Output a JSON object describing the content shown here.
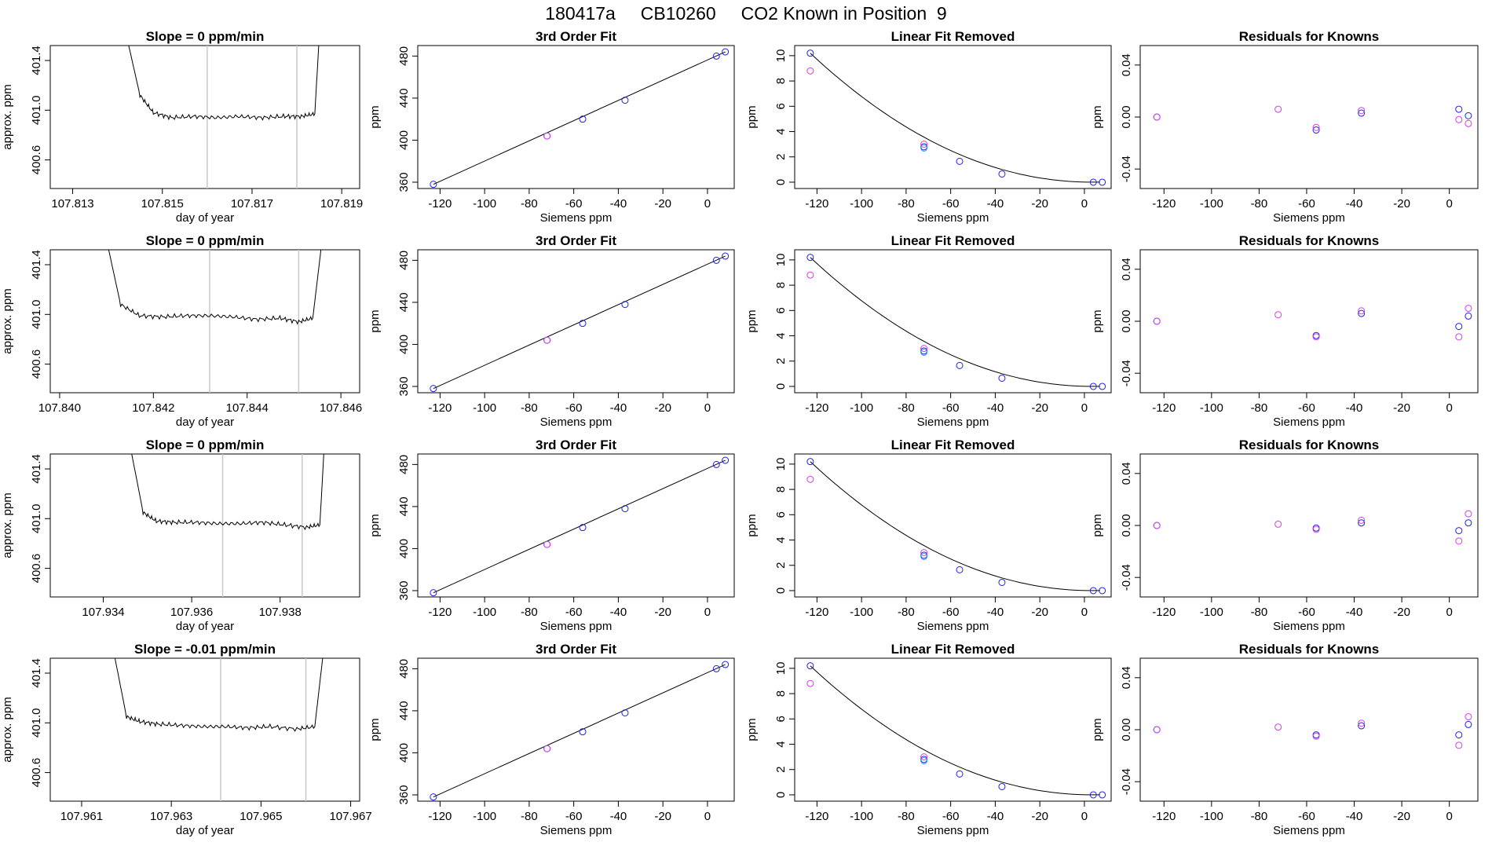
{
  "page": {
    "title": "180417a     CB10260     CO2 Known in Position  9"
  },
  "chart_data": [
    {
      "type": "line",
      "title": "Slope =  0  ppm/min",
      "xlabel": "day of year",
      "ylabel": "approx. ppm",
      "xlim": [
        107.8125,
        107.8194
      ],
      "ylim": [
        400.37,
        401.52
      ],
      "xticks": [
        "107.813",
        "107.815",
        "107.817",
        "107.819"
      ],
      "yticks": [
        "400.6",
        "401.0",
        "401.4"
      ],
      "vlines": [
        107.816,
        107.818
      ],
      "series": [
        {
          "x": [
            107.8142,
            107.8145,
            107.8148,
            107.8152,
            107.8157,
            107.8162,
            107.8167,
            107.8172,
            107.8177,
            107.8181,
            107.8184,
            107.8185
          ],
          "y": [
            401.6,
            401.12,
            400.98,
            400.94,
            400.95,
            400.94,
            400.95,
            400.94,
            400.95,
            400.95,
            400.97,
            401.6
          ]
        }
      ]
    },
    {
      "type": "line",
      "title": "3rd Order Fit",
      "xlabel": "Siemens ppm",
      "ylabel": "ppm",
      "xlim": [
        -130,
        12
      ],
      "ylim": [
        354,
        490
      ],
      "xticks": [
        "-120",
        "-100",
        "-80",
        "-60",
        "-40",
        "-20",
        "0"
      ],
      "yticks": [
        "360",
        "400",
        "440",
        "480"
      ],
      "series": [
        {
          "x": [
            -123,
            -72,
            -56,
            -37,
            4,
            8
          ],
          "y": [
            358,
            404,
            420,
            438,
            480,
            484
          ]
        }
      ]
    },
    {
      "type": "line",
      "title": "Linear Fit Removed",
      "xlabel": "Siemens ppm",
      "ylabel": "ppm",
      "xlim": [
        -130,
        12
      ],
      "ylim": [
        -0.5,
        10.8
      ],
      "xticks": [
        "-120",
        "-100",
        "-80",
        "-60",
        "-40",
        "-20",
        "0"
      ],
      "yticks": [
        "0",
        "2",
        "4",
        "6",
        "8",
        "10"
      ],
      "series": [
        {
          "x": [
            -123,
            -72,
            -56,
            -37,
            4,
            8
          ],
          "y": [
            10.2,
            2.8,
            1.65,
            0.65,
            0,
            0
          ]
        }
      ]
    },
    {
      "type": "scatter",
      "title": "Residuals for Knowns",
      "xlabel": "Siemens ppm",
      "ylabel": "ppm",
      "xlim": [
        -130,
        12
      ],
      "ylim": [
        -0.055,
        0.055
      ],
      "xticks": [
        "-120",
        "-100",
        "-80",
        "-60",
        "-40",
        "-20",
        "0"
      ],
      "yticks": [
        "-0.04",
        "0.00",
        "0.04"
      ],
      "series": [
        {
          "x": [
            -123,
            -72,
            -56,
            -56,
            -37,
            -37,
            4,
            4,
            8,
            8
          ],
          "y": [
            0.0,
            0.006,
            -0.01,
            -0.008,
            0.003,
            0.005,
            0.006,
            -0.002,
            0.001,
            -0.005
          ]
        }
      ]
    },
    {
      "type": "line",
      "title": "Slope =  0  ppm/min",
      "xlabel": "day of year",
      "ylabel": "approx. ppm",
      "xlim": [
        107.8398,
        107.8464
      ],
      "ylim": [
        400.37,
        401.52
      ],
      "xticks": [
        "107.840",
        "107.842",
        "107.844",
        "107.846"
      ],
      "yticks": [
        "400.6",
        "401.0",
        "401.4"
      ],
      "vlines": [
        107.8432,
        107.8451
      ],
      "series": [
        {
          "x": [
            107.841,
            107.8413,
            107.8417,
            107.8422,
            107.8427,
            107.8432,
            107.8437,
            107.8442,
            107.8447,
            107.8451,
            107.8454,
            107.8456
          ],
          "y": [
            401.6,
            401.08,
            400.99,
            400.98,
            400.99,
            400.99,
            400.98,
            400.96,
            400.97,
            400.94,
            400.97,
            401.6
          ]
        }
      ]
    },
    {
      "type": "line",
      "title": "3rd Order Fit",
      "xlabel": "Siemens ppm",
      "ylabel": "ppm",
      "xlim": [
        -130,
        12
      ],
      "ylim": [
        354,
        490
      ],
      "xticks": [
        "-120",
        "-100",
        "-80",
        "-60",
        "-40",
        "-20",
        "0"
      ],
      "yticks": [
        "360",
        "400",
        "440",
        "480"
      ],
      "series": [
        {
          "x": [
            -123,
            -72,
            -56,
            -37,
            4,
            8
          ],
          "y": [
            358,
            404,
            420,
            438,
            480,
            484
          ]
        }
      ]
    },
    {
      "type": "line",
      "title": "Linear Fit Removed",
      "xlabel": "Siemens ppm",
      "ylabel": "ppm",
      "xlim": [
        -130,
        12
      ],
      "ylim": [
        -0.5,
        10.8
      ],
      "xticks": [
        "-120",
        "-100",
        "-80",
        "-60",
        "-40",
        "-20",
        "0"
      ],
      "yticks": [
        "0",
        "2",
        "4",
        "6",
        "8",
        "10"
      ],
      "series": [
        {
          "x": [
            -123,
            -72,
            -56,
            -37,
            4,
            8
          ],
          "y": [
            10.2,
            2.8,
            1.65,
            0.65,
            0,
            0
          ]
        }
      ]
    },
    {
      "type": "scatter",
      "title": "Residuals for Knowns",
      "xlabel": "Siemens ppm",
      "ylabel": "ppm",
      "xlim": [
        -130,
        12
      ],
      "ylim": [
        -0.055,
        0.055
      ],
      "xticks": [
        "-120",
        "-100",
        "-80",
        "-60",
        "-40",
        "-20",
        "0"
      ],
      "yticks": [
        "-0.04",
        "0.00",
        "0.04"
      ],
      "series": [
        {
          "x": [
            -123,
            -72,
            -56,
            -56,
            -37,
            -37,
            4,
            4,
            8,
            8
          ],
          "y": [
            0.0,
            0.005,
            -0.011,
            -0.012,
            0.006,
            0.008,
            -0.004,
            -0.012,
            0.004,
            0.01
          ]
        }
      ]
    },
    {
      "type": "line",
      "title": "Slope =  0  ppm/min",
      "xlabel": "day of year",
      "ylabel": "approx. ppm",
      "xlim": [
        107.9328,
        107.9398
      ],
      "ylim": [
        400.37,
        401.52
      ],
      "xticks": [
        "107.934",
        "107.936",
        "107.938"
      ],
      "yticks": [
        "400.6",
        "401.0",
        "401.4"
      ],
      "vlines": [
        107.9367,
        107.9385
      ],
      "series": [
        {
          "x": [
            107.9346,
            107.9349,
            107.9352,
            107.9356,
            107.9361,
            107.9366,
            107.9371,
            107.9376,
            107.9381,
            107.9386,
            107.9389,
            107.939
          ],
          "y": [
            401.6,
            401.05,
            400.98,
            400.97,
            400.97,
            400.96,
            400.96,
            400.97,
            400.95,
            400.93,
            400.95,
            401.6
          ]
        }
      ]
    },
    {
      "type": "line",
      "title": "3rd Order Fit",
      "xlabel": "Siemens ppm",
      "ylabel": "ppm",
      "xlim": [
        -130,
        12
      ],
      "ylim": [
        354,
        490
      ],
      "xticks": [
        "-120",
        "-100",
        "-80",
        "-60",
        "-40",
        "-20",
        "0"
      ],
      "yticks": [
        "360",
        "400",
        "440",
        "480"
      ],
      "series": [
        {
          "x": [
            -123,
            -72,
            -56,
            -37,
            4,
            8
          ],
          "y": [
            358,
            404,
            420,
            438,
            480,
            484
          ]
        }
      ]
    },
    {
      "type": "line",
      "title": "Linear Fit Removed",
      "xlabel": "Siemens ppm",
      "ylabel": "ppm",
      "xlim": [
        -130,
        12
      ],
      "ylim": [
        -0.5,
        10.8
      ],
      "xticks": [
        "-120",
        "-100",
        "-80",
        "-60",
        "-40",
        "-20",
        "0"
      ],
      "yticks": [
        "0",
        "2",
        "4",
        "6",
        "8",
        "10"
      ],
      "series": [
        {
          "x": [
            -123,
            -72,
            -56,
            -37,
            4,
            8
          ],
          "y": [
            10.2,
            2.8,
            1.65,
            0.65,
            0,
            0
          ]
        }
      ]
    },
    {
      "type": "scatter",
      "title": "Residuals for Knowns",
      "xlabel": "Siemens ppm",
      "ylabel": "ppm",
      "xlim": [
        -130,
        12
      ],
      "ylim": [
        -0.055,
        0.055
      ],
      "xticks": [
        "-120",
        "-100",
        "-80",
        "-60",
        "-40",
        "-20",
        "0"
      ],
      "yticks": [
        "-0.04",
        "0.00",
        "0.04"
      ],
      "series": [
        {
          "x": [
            -123,
            -72,
            -56,
            -56,
            -37,
            -37,
            4,
            4,
            8,
            8
          ],
          "y": [
            0.0,
            0.001,
            -0.002,
            -0.003,
            0.002,
            0.004,
            -0.004,
            -0.012,
            0.002,
            0.009
          ]
        }
      ]
    },
    {
      "type": "line",
      "title": "Slope =  -0.01  ppm/min",
      "xlabel": "day of year",
      "ylabel": "approx. ppm",
      "xlim": [
        107.9603,
        107.9672
      ],
      "ylim": [
        400.37,
        401.52
      ],
      "xticks": [
        "107.961",
        "107.963",
        "107.965",
        "107.967"
      ],
      "yticks": [
        "400.6",
        "401.0",
        "401.4"
      ],
      "vlines": [
        107.9641,
        107.966
      ],
      "series": [
        {
          "x": [
            107.9617,
            107.962,
            107.9623,
            107.9627,
            107.9632,
            107.9637,
            107.9642,
            107.9647,
            107.9652,
            107.9658,
            107.9662,
            107.9664
          ],
          "y": [
            401.6,
            401.05,
            401.01,
            400.99,
            400.98,
            400.97,
            400.97,
            400.96,
            400.97,
            400.95,
            400.97,
            401.6
          ]
        }
      ]
    },
    {
      "type": "line",
      "title": "3rd Order Fit",
      "xlabel": "Siemens ppm",
      "ylabel": "ppm",
      "xlim": [
        -130,
        12
      ],
      "ylim": [
        354,
        490
      ],
      "xticks": [
        "-120",
        "-100",
        "-80",
        "-60",
        "-40",
        "-20",
        "0"
      ],
      "yticks": [
        "360",
        "400",
        "440",
        "480"
      ],
      "series": [
        {
          "x": [
            -123,
            -72,
            -56,
            -37,
            4,
            8
          ],
          "y": [
            358,
            404,
            420,
            438,
            480,
            484
          ]
        }
      ]
    },
    {
      "type": "line",
      "title": "Linear Fit Removed",
      "xlabel": "Siemens ppm",
      "ylabel": "ppm",
      "xlim": [
        -130,
        12
      ],
      "ylim": [
        -0.5,
        10.8
      ],
      "xticks": [
        "-120",
        "-100",
        "-80",
        "-60",
        "-40",
        "-20",
        "0"
      ],
      "yticks": [
        "0",
        "2",
        "4",
        "6",
        "8",
        "10"
      ],
      "series": [
        {
          "x": [
            -123,
            -72,
            -56,
            -37,
            4,
            8
          ],
          "y": [
            10.2,
            2.8,
            1.65,
            0.65,
            0,
            0
          ]
        }
      ]
    },
    {
      "type": "scatter",
      "title": "Residuals for Knowns",
      "xlabel": "Siemens ppm",
      "ylabel": "ppm",
      "xlim": [
        -130,
        12
      ],
      "ylim": [
        -0.055,
        0.055
      ],
      "xticks": [
        "-120",
        "-100",
        "-80",
        "-60",
        "-40",
        "-20",
        "0"
      ],
      "yticks": [
        "-0.04",
        "0.00",
        "0.04"
      ],
      "series": [
        {
          "x": [
            -123,
            -72,
            -56,
            -56,
            -37,
            -37,
            4,
            4,
            8,
            8
          ],
          "y": [
            0.0,
            0.002,
            -0.004,
            -0.005,
            0.003,
            0.005,
            -0.004,
            -0.012,
            0.004,
            0.01
          ]
        }
      ]
    }
  ],
  "colors": {
    "line": "#000000",
    "vline": "#c8c8c8",
    "point_blue": "#2020e0",
    "point_magenta": "#d040e0",
    "point_cyan": "#30a0e0"
  }
}
